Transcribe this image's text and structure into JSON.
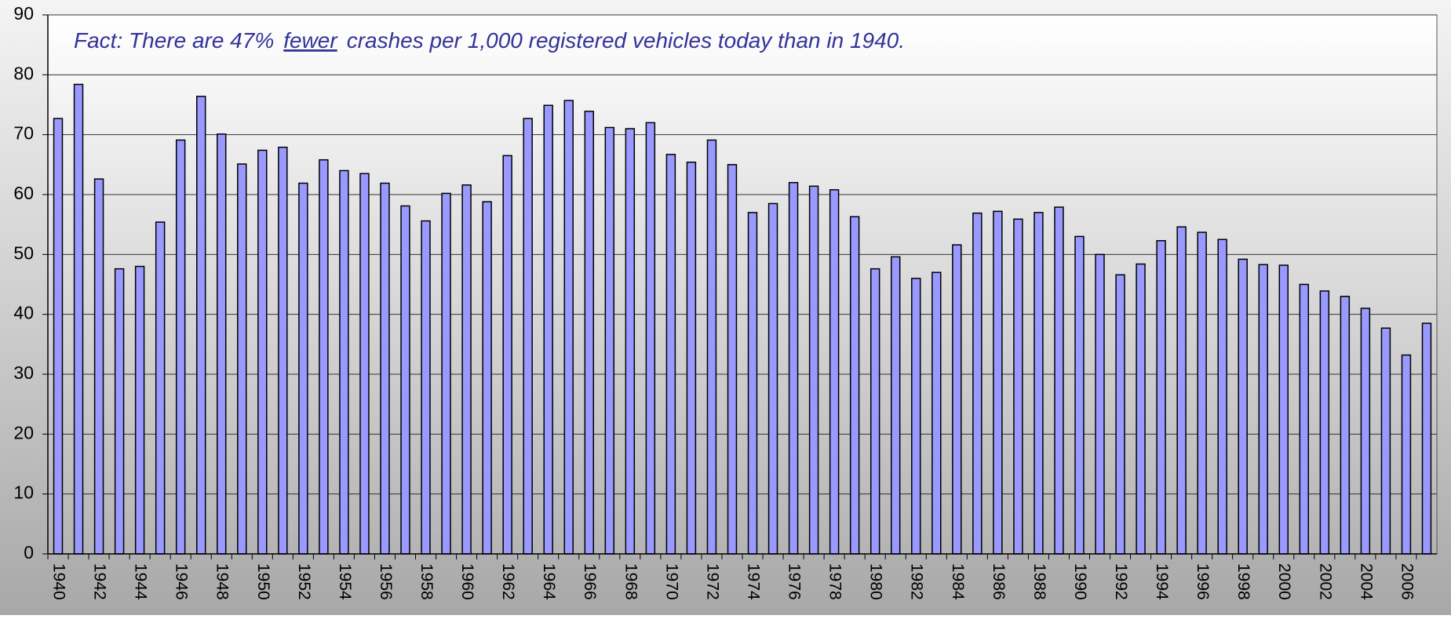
{
  "chart_data": {
    "type": "bar",
    "annotation": [
      "Fact: There are 47%",
      "fewer",
      "crashes per 1,000 registered vehicles today than in 1940."
    ],
    "categories": [
      "1940",
      null,
      "1942",
      null,
      "1944",
      null,
      "1946",
      null,
      "1948",
      null,
      "1950",
      null,
      "1952",
      null,
      "1954",
      null,
      "1956",
      null,
      "1958",
      null,
      "1960",
      null,
      "1962",
      null,
      "1964",
      null,
      "1966",
      null,
      "1968",
      null,
      "1970",
      null,
      "1972",
      null,
      "1974",
      null,
      "1976",
      null,
      "1978",
      null,
      "1980",
      null,
      "1982",
      null,
      "1984",
      null,
      "1986",
      null,
      "1988",
      null,
      "1990",
      null,
      "1992",
      null,
      "1994",
      null,
      "1996",
      null,
      "1998",
      null,
      "2000",
      null,
      "2002",
      null,
      "2004",
      null,
      "2006",
      null
    ],
    "values": [
      72.7,
      78.4,
      62.6,
      47.6,
      48.0,
      55.4,
      69.1,
      76.4,
      70.1,
      65.1,
      67.4,
      67.9,
      61.9,
      65.8,
      64.0,
      63.5,
      61.9,
      58.1,
      55.6,
      60.2,
      61.6,
      58.8,
      66.5,
      72.7,
      74.9,
      75.7,
      73.9,
      71.2,
      71.0,
      72.0,
      66.7,
      65.4,
      69.1,
      65.0,
      57.0,
      58.5,
      62.0,
      61.4,
      60.8,
      56.3,
      47.6,
      49.6,
      46.0,
      47.0,
      51.6,
      56.9,
      57.2,
      55.9,
      57.0,
      57.9,
      53.0,
      50.0,
      46.6,
      48.4,
      52.3,
      54.6,
      53.7,
      52.5,
      49.2,
      48.3,
      48.2,
      45.0,
      43.9,
      43.0,
      41.0,
      37.7,
      33.2,
      38.5
    ],
    "color": "#9999ff",
    "ylim": [
      0,
      90
    ],
    "yticks": [
      0,
      10,
      20,
      30,
      40,
      50,
      60,
      70,
      80,
      90
    ],
    "grid": true
  }
}
